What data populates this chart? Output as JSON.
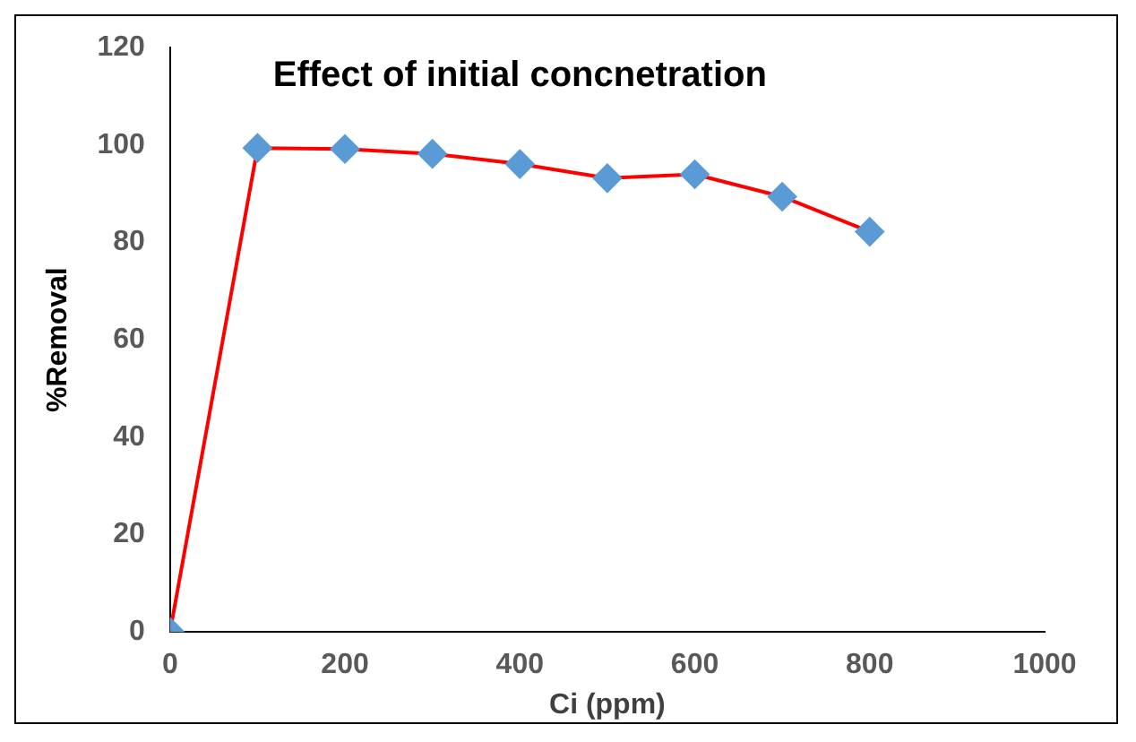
{
  "chart_data": {
    "type": "line",
    "title": "Effect of initial concnetration",
    "xlabel": "Ci (ppm)",
    "ylabel": "%Removal",
    "x": [
      0,
      100,
      200,
      300,
      400,
      500,
      600,
      700,
      800
    ],
    "series": [
      {
        "color": "#ff0000",
        "colors": [
          "#5b9bd5",
          "#5b9bd5",
          "#5b9bd5",
          "#5b9bd5",
          "#5b9bd5",
          "#5b9bd5",
          "#5b9bd5",
          "#5b9bd5",
          "#5b9bd5"
        ],
        "values": [
          0,
          99.4,
          99.2,
          98.2,
          96.1,
          93.2,
          94.0,
          89.4,
          82.2
        ]
      }
    ],
    "xlim": [
      0,
      1000
    ],
    "xticks": [
      0,
      200,
      400,
      600,
      800,
      1000
    ],
    "ylim": [
      0,
      120
    ],
    "yticks": [
      0,
      20,
      40,
      60,
      80,
      100,
      120
    ],
    "grid": false,
    "legend": false,
    "marker": "diamond",
    "line_style": "solid"
  }
}
